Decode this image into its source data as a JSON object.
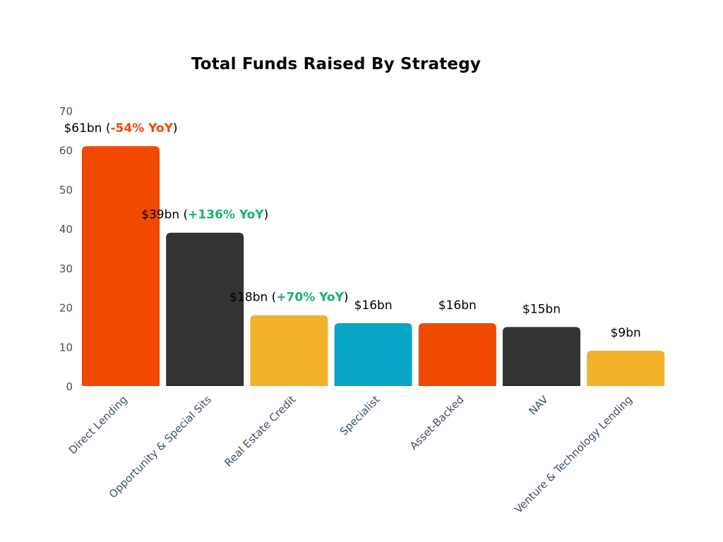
{
  "chart_data": {
    "type": "bar",
    "title": "Total Funds Raised By Strategy",
    "xlabel": "",
    "ylabel": "",
    "ylim": [
      0,
      70
    ],
    "yticks": [
      0,
      10,
      20,
      30,
      40,
      50,
      60,
      70
    ],
    "grid": false,
    "legend": "none",
    "categories": [
      "Direct Lending",
      "Opportunity & Special Sits",
      "Real Estate Credit",
      "Specialist",
      "Asset-Backed",
      "NAV",
      "Venture & Technology Lending"
    ],
    "values": [
      61,
      39,
      18,
      16,
      16,
      15,
      9
    ],
    "colors": [
      "#f04a00",
      "#333333",
      "#f2b22a",
      "#08a5c6",
      "#f04a00",
      "#333333",
      "#f2b22a"
    ],
    "data_labels": [
      {
        "amount": "$61bn",
        "change": "-54% YoY",
        "change_color": "#f04a00"
      },
      {
        "amount": "$39bn",
        "change": "+136% YoY",
        "change_color": "#17b26a"
      },
      {
        "amount": "$18bn",
        "change": "+70% YoY",
        "change_color": "#17b26a"
      },
      {
        "amount": "$16bn",
        "change": "",
        "change_color": ""
      },
      {
        "amount": "$16bn",
        "change": "",
        "change_color": ""
      },
      {
        "amount": "$15bn",
        "change": "",
        "change_color": ""
      },
      {
        "amount": "$9bn",
        "change": "",
        "change_color": ""
      }
    ]
  }
}
